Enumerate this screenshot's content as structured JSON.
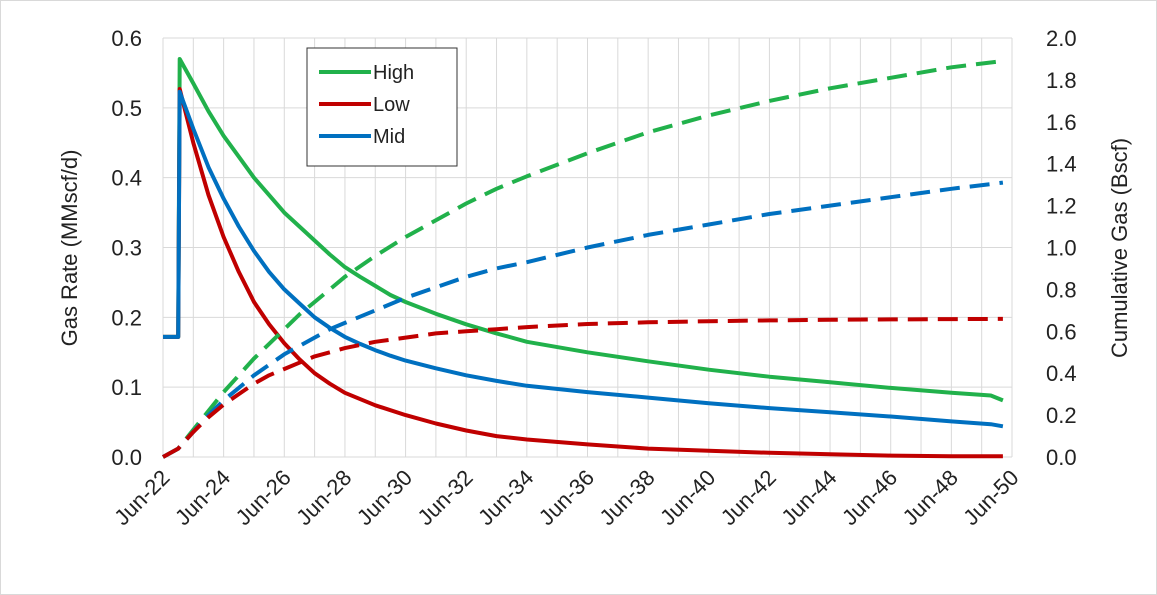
{
  "chart_data": {
    "type": "line",
    "title": "",
    "xlabel": "",
    "ylabel": "Gas Rate (MMscf/d)",
    "y2label": "Cumulative Gas (Bscf)",
    "x_unit": "year",
    "xlim": [
      2022.5,
      2050.5
    ],
    "ylim": [
      0,
      0.6
    ],
    "y2lim": [
      0,
      2.0
    ],
    "x_ticks": [
      {
        "value": 2022.5,
        "label": "Jun-22"
      },
      {
        "value": 2024.5,
        "label": "Jun-24"
      },
      {
        "value": 2026.5,
        "label": "Jun-26"
      },
      {
        "value": 2028.5,
        "label": "Jun-28"
      },
      {
        "value": 2030.5,
        "label": "Jun-30"
      },
      {
        "value": 2032.5,
        "label": "Jun-32"
      },
      {
        "value": 2034.5,
        "label": "Jun-34"
      },
      {
        "value": 2036.5,
        "label": "Jun-36"
      },
      {
        "value": 2038.5,
        "label": "Jun-38"
      },
      {
        "value": 2040.5,
        "label": "Jun-40"
      },
      {
        "value": 2042.5,
        "label": "Jun-42"
      },
      {
        "value": 2044.5,
        "label": "Jun-44"
      },
      {
        "value": 2046.5,
        "label": "Jun-46"
      },
      {
        "value": 2048.5,
        "label": "Jun-48"
      },
      {
        "value": 2050.5,
        "label": "Jun-50"
      }
    ],
    "y_ticks": [
      "0.0",
      "0.1",
      "0.2",
      "0.3",
      "0.4",
      "0.5",
      "0.6"
    ],
    "y2_ticks": [
      "0.0",
      "0.2",
      "0.4",
      "0.6",
      "0.8",
      "1.0",
      "1.2",
      "1.4",
      "1.6",
      "1.8",
      "2.0"
    ],
    "grid": true,
    "legend_position": "top-left",
    "legend": [
      "High",
      "Low",
      "Mid"
    ],
    "series": [
      {
        "name": "High",
        "axis": "left",
        "style": "solid",
        "color": "#21b14b",
        "points": [
          [
            2022.5,
            0.172
          ],
          [
            2023.0,
            0.172
          ],
          [
            2023.05,
            0.57
          ],
          [
            2023.5,
            0.535
          ],
          [
            2024.0,
            0.495
          ],
          [
            2024.5,
            0.46
          ],
          [
            2025.0,
            0.43
          ],
          [
            2025.5,
            0.4
          ],
          [
            2026.0,
            0.375
          ],
          [
            2026.5,
            0.35
          ],
          [
            2027.0,
            0.33
          ],
          [
            2027.5,
            0.31
          ],
          [
            2028.0,
            0.29
          ],
          [
            2028.5,
            0.272
          ],
          [
            2029.0,
            0.258
          ],
          [
            2029.5,
            0.245
          ],
          [
            2030.0,
            0.232
          ],
          [
            2030.5,
            0.222
          ],
          [
            2031.5,
            0.205
          ],
          [
            2032.5,
            0.19
          ],
          [
            2033.5,
            0.177
          ],
          [
            2034.5,
            0.165
          ],
          [
            2036.5,
            0.15
          ],
          [
            2038.5,
            0.137
          ],
          [
            2040.5,
            0.125
          ],
          [
            2042.5,
            0.115
          ],
          [
            2044.5,
            0.107
          ],
          [
            2046.5,
            0.099
          ],
          [
            2048.5,
            0.092
          ],
          [
            2049.8,
            0.088
          ],
          [
            2050.2,
            0.081
          ]
        ]
      },
      {
        "name": "Low",
        "axis": "left",
        "style": "solid",
        "color": "#c00000",
        "points": [
          [
            2022.5,
            0.172
          ],
          [
            2023.0,
            0.172
          ],
          [
            2023.05,
            0.527
          ],
          [
            2023.5,
            0.45
          ],
          [
            2024.0,
            0.375
          ],
          [
            2024.5,
            0.315
          ],
          [
            2025.0,
            0.265
          ],
          [
            2025.5,
            0.222
          ],
          [
            2026.0,
            0.19
          ],
          [
            2026.5,
            0.163
          ],
          [
            2027.0,
            0.14
          ],
          [
            2027.5,
            0.12
          ],
          [
            2028.0,
            0.105
          ],
          [
            2028.5,
            0.092
          ],
          [
            2029.5,
            0.074
          ],
          [
            2030.5,
            0.06
          ],
          [
            2031.5,
            0.048
          ],
          [
            2032.5,
            0.038
          ],
          [
            2033.5,
            0.03
          ],
          [
            2034.5,
            0.025
          ],
          [
            2036.5,
            0.018
          ],
          [
            2038.5,
            0.012
          ],
          [
            2040.5,
            0.009
          ],
          [
            2042.5,
            0.006
          ],
          [
            2044.5,
            0.004
          ],
          [
            2046.5,
            0.002
          ],
          [
            2048.5,
            0.001
          ],
          [
            2050.2,
            0.001
          ]
        ]
      },
      {
        "name": "Mid",
        "axis": "left",
        "style": "solid",
        "color": "#0070c0",
        "points": [
          [
            2022.5,
            0.172
          ],
          [
            2023.0,
            0.172
          ],
          [
            2023.05,
            0.523
          ],
          [
            2023.5,
            0.47
          ],
          [
            2024.0,
            0.415
          ],
          [
            2024.5,
            0.37
          ],
          [
            2025.0,
            0.33
          ],
          [
            2025.5,
            0.295
          ],
          [
            2026.0,
            0.265
          ],
          [
            2026.5,
            0.24
          ],
          [
            2027.0,
            0.22
          ],
          [
            2027.5,
            0.2
          ],
          [
            2028.0,
            0.185
          ],
          [
            2028.5,
            0.172
          ],
          [
            2029.0,
            0.162
          ],
          [
            2029.5,
            0.153
          ],
          [
            2030.0,
            0.145
          ],
          [
            2030.5,
            0.138
          ],
          [
            2031.5,
            0.127
          ],
          [
            2032.5,
            0.117
          ],
          [
            2033.5,
            0.109
          ],
          [
            2034.5,
            0.102
          ],
          [
            2036.5,
            0.093
          ],
          [
            2038.5,
            0.085
          ],
          [
            2040.5,
            0.077
          ],
          [
            2042.5,
            0.07
          ],
          [
            2044.5,
            0.064
          ],
          [
            2046.5,
            0.058
          ],
          [
            2048.5,
            0.051
          ],
          [
            2049.8,
            0.047
          ],
          [
            2050.2,
            0.044
          ]
        ]
      },
      {
        "name": "High",
        "axis": "right",
        "style": "dashed",
        "color": "#21b14b",
        "points": [
          [
            2022.5,
            0.0
          ],
          [
            2023.0,
            0.04
          ],
          [
            2023.5,
            0.13
          ],
          [
            2024.0,
            0.22
          ],
          [
            2024.5,
            0.31
          ],
          [
            2025.0,
            0.39
          ],
          [
            2025.5,
            0.47
          ],
          [
            2026.0,
            0.54
          ],
          [
            2026.5,
            0.61
          ],
          [
            2027.0,
            0.68
          ],
          [
            2027.5,
            0.74
          ],
          [
            2028.0,
            0.8
          ],
          [
            2028.5,
            0.86
          ],
          [
            2029.0,
            0.91
          ],
          [
            2029.5,
            0.96
          ],
          [
            2030.5,
            1.05
          ],
          [
            2031.5,
            1.13
          ],
          [
            2032.5,
            1.21
          ],
          [
            2033.5,
            1.28
          ],
          [
            2034.5,
            1.34
          ],
          [
            2036.5,
            1.45
          ],
          [
            2038.5,
            1.55
          ],
          [
            2040.5,
            1.63
          ],
          [
            2042.5,
            1.7
          ],
          [
            2044.5,
            1.76
          ],
          [
            2046.5,
            1.81
          ],
          [
            2048.5,
            1.86
          ],
          [
            2050.2,
            1.89
          ]
        ]
      },
      {
        "name": "Mid",
        "axis": "right",
        "style": "dashed",
        "color": "#0070c0",
        "points": [
          [
            2022.5,
            0.0
          ],
          [
            2023.0,
            0.04
          ],
          [
            2023.5,
            0.12
          ],
          [
            2024.0,
            0.2
          ],
          [
            2024.5,
            0.27
          ],
          [
            2025.0,
            0.33
          ],
          [
            2025.5,
            0.39
          ],
          [
            2026.0,
            0.44
          ],
          [
            2026.5,
            0.49
          ],
          [
            2027.0,
            0.53
          ],
          [
            2027.5,
            0.57
          ],
          [
            2028.0,
            0.61
          ],
          [
            2028.5,
            0.64
          ],
          [
            2029.5,
            0.7
          ],
          [
            2030.5,
            0.76
          ],
          [
            2031.5,
            0.81
          ],
          [
            2032.5,
            0.86
          ],
          [
            2033.5,
            0.9
          ],
          [
            2034.5,
            0.93
          ],
          [
            2036.5,
            1.0
          ],
          [
            2038.5,
            1.06
          ],
          [
            2040.5,
            1.11
          ],
          [
            2042.5,
            1.16
          ],
          [
            2044.5,
            1.2
          ],
          [
            2046.5,
            1.24
          ],
          [
            2048.5,
            1.28
          ],
          [
            2050.2,
            1.31
          ]
        ]
      },
      {
        "name": "Low",
        "axis": "right",
        "style": "dashed",
        "color": "#c00000",
        "points": [
          [
            2022.5,
            0.0
          ],
          [
            2023.0,
            0.04
          ],
          [
            2023.5,
            0.12
          ],
          [
            2024.0,
            0.19
          ],
          [
            2024.5,
            0.25
          ],
          [
            2025.0,
            0.3
          ],
          [
            2025.5,
            0.35
          ],
          [
            2026.0,
            0.39
          ],
          [
            2026.5,
            0.42
          ],
          [
            2027.0,
            0.45
          ],
          [
            2027.5,
            0.48
          ],
          [
            2028.0,
            0.5
          ],
          [
            2028.5,
            0.52
          ],
          [
            2029.5,
            0.55
          ],
          [
            2030.5,
            0.57
          ],
          [
            2031.5,
            0.59
          ],
          [
            2032.5,
            0.6
          ],
          [
            2033.5,
            0.61
          ],
          [
            2034.5,
            0.62
          ],
          [
            2036.5,
            0.635
          ],
          [
            2038.5,
            0.643
          ],
          [
            2040.5,
            0.648
          ],
          [
            2042.5,
            0.652
          ],
          [
            2044.5,
            0.655
          ],
          [
            2046.5,
            0.657
          ],
          [
            2048.5,
            0.658
          ],
          [
            2050.2,
            0.659
          ]
        ]
      }
    ]
  }
}
